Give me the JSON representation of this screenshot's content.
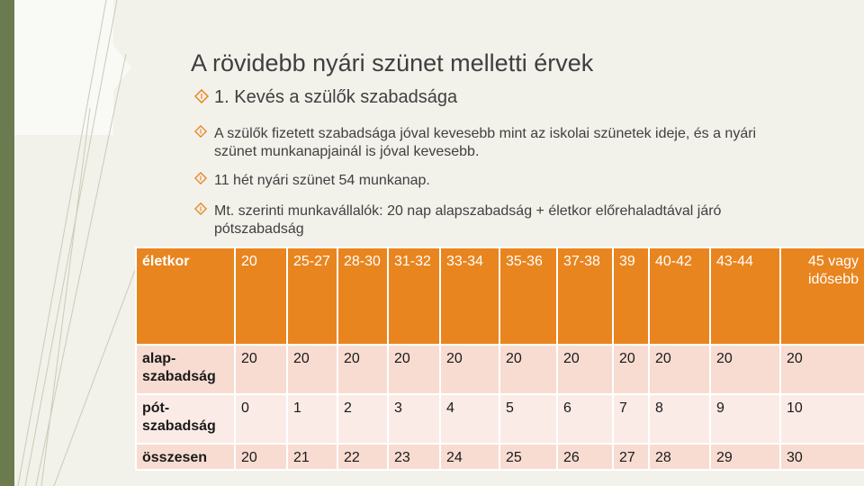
{
  "slide": {
    "title": "A rövidebb nyári szünet melletti érvek",
    "bullets": [
      {
        "icon": "diamond-bullet-icon",
        "text": "1. Kevés a szülők szabadsága"
      },
      {
        "icon": "diamond-bullet-icon",
        "text": "A szülők fizetett szabadsága jóval kevesebb mint az iskolai szünetek ideje, és a nyári szünet munkanapjainál is jóval kevesebb."
      },
      {
        "icon": "diamond-bullet-icon",
        "text": "11 hét nyári szünet 54 munkanap."
      },
      {
        "icon": "diamond-bullet-icon",
        "text": "Mt. szerinti munkavállalók: 20 nap alapszabadság + életkor előrehaladtával járó pótszabadság"
      }
    ]
  },
  "table": {
    "header": [
      "életkor",
      "20",
      "25-27",
      "28-30",
      "31-32",
      "33-34",
      "35-36",
      "37-38",
      "39",
      "40-42",
      "43-44",
      "45 vagy idősebb"
    ],
    "rows": [
      [
        "alap-szabadság",
        "20",
        "20",
        "20",
        "20",
        "20",
        "20",
        "20",
        "20",
        "20",
        "20",
        "20"
      ],
      [
        "pót-szabadság",
        "0",
        "1",
        "2",
        "3",
        "4",
        "5",
        "6",
        "7",
        "8",
        "9",
        "10"
      ],
      [
        "összesen",
        "20",
        "21",
        "22",
        "23",
        "24",
        "25",
        "26",
        "27",
        "28",
        "29",
        "30"
      ]
    ]
  },
  "colors": {
    "header_bg": "#e8851f",
    "row_dark": "#f8dcd1",
    "row_light": "#fbebe6",
    "accent_green": "#6b7a4f",
    "background": "#f2f1ea"
  }
}
